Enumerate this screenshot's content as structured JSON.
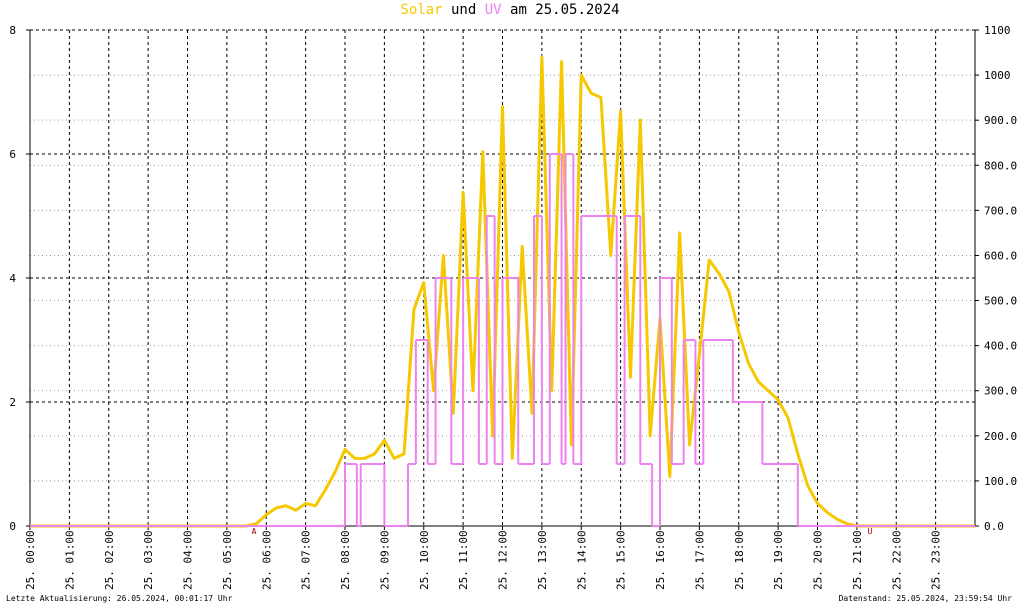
{
  "chart_data": {
    "type": "line",
    "title_middle": "und",
    "title_suffix": "am 25.05.2024",
    "xlim": [
      0,
      24
    ],
    "xticks": [
      {
        "value": 0,
        "label": "25. 00:00"
      },
      {
        "value": 1,
        "label": "25. 01:00"
      },
      {
        "value": 2,
        "label": "25. 02:00"
      },
      {
        "value": 3,
        "label": "25. 03:00"
      },
      {
        "value": 4,
        "label": "25. 04:00"
      },
      {
        "value": 5,
        "label": "25. 05:00"
      },
      {
        "value": 6,
        "label": "25. 06:00"
      },
      {
        "value": 7,
        "label": "25. 07:00"
      },
      {
        "value": 8,
        "label": "25. 08:00"
      },
      {
        "value": 9,
        "label": "25. 09:00"
      },
      {
        "value": 10,
        "label": "25. 10:00"
      },
      {
        "value": 11,
        "label": "25. 11:00"
      },
      {
        "value": 12,
        "label": "25. 12:00"
      },
      {
        "value": 13,
        "label": "25. 13:00"
      },
      {
        "value": 14,
        "label": "25. 14:00"
      },
      {
        "value": 15,
        "label": "25. 15:00"
      },
      {
        "value": 16,
        "label": "25. 16:00"
      },
      {
        "value": 17,
        "label": "25. 17:00"
      },
      {
        "value": 18,
        "label": "25. 18:00"
      },
      {
        "value": 19,
        "label": "25. 19:00"
      },
      {
        "value": 20,
        "label": "25. 20:00"
      },
      {
        "value": 21,
        "label": "25. 21:00"
      },
      {
        "value": 22,
        "label": "25. 22:00"
      },
      {
        "value": 23,
        "label": "25. 23:00"
      }
    ],
    "ylim": [
      0,
      8
    ],
    "yticks": [
      0,
      2,
      4,
      6,
      8
    ],
    "y2lim": [
      0,
      1100
    ],
    "y2ticks": [
      {
        "value": 0,
        "label": "0.0"
      },
      {
        "value": 100,
        "label": "100.0"
      },
      {
        "value": 200,
        "label": "200.0"
      },
      {
        "value": 300,
        "label": "300.0"
      },
      {
        "value": 400,
        "label": "400.0"
      },
      {
        "value": 500,
        "label": "500.0"
      },
      {
        "value": 600,
        "label": "600.0"
      },
      {
        "value": 700,
        "label": "700.0"
      },
      {
        "value": 800,
        "label": "800.0"
      },
      {
        "value": 900,
        "label": "900.0"
      },
      {
        "value": 1000,
        "label": "1000"
      },
      {
        "value": 1100,
        "label": "1100"
      }
    ],
    "grid": true,
    "series": [
      {
        "name": "Solar",
        "color": "#f5c800",
        "axis": "y2",
        "x": [
          0,
          5.5,
          5.75,
          6,
          6.25,
          6.5,
          6.75,
          7,
          7.25,
          7.5,
          7.75,
          8,
          8.25,
          8.5,
          8.75,
          9,
          9.25,
          9.5,
          9.75,
          10,
          10.25,
          10.5,
          10.75,
          11,
          11.25,
          11.5,
          11.75,
          12,
          12.25,
          12.5,
          12.75,
          13,
          13.25,
          13.5,
          13.75,
          14,
          14.25,
          14.5,
          14.75,
          15,
          15.25,
          15.5,
          15.75,
          16,
          16.25,
          16.5,
          16.75,
          17,
          17.25,
          17.5,
          17.75,
          18,
          18.25,
          18.5,
          18.75,
          19,
          19.25,
          19.5,
          19.75,
          20,
          20.25,
          20.5,
          20.75,
          21,
          24
        ],
        "values": [
          0,
          0,
          5,
          25,
          40,
          45,
          35,
          50,
          45,
          80,
          120,
          170,
          150,
          150,
          160,
          190,
          150,
          160,
          480,
          540,
          300,
          600,
          250,
          740,
          300,
          830,
          200,
          930,
          150,
          620,
          250,
          1040,
          300,
          1030,
          180,
          1000,
          960,
          950,
          600,
          920,
          330,
          900,
          200,
          460,
          110,
          650,
          180,
          380,
          590,
          560,
          520,
          430,
          360,
          320,
          300,
          280,
          240,
          160,
          90,
          50,
          30,
          15,
          5,
          0,
          0
        ]
      },
      {
        "name": "UV",
        "color": "#ee82ee",
        "axis": "y",
        "x": [
          0,
          8,
          8.3,
          8.4,
          9,
          9.6,
          9.8,
          10.1,
          10.3,
          10.7,
          11,
          11.4,
          11.6,
          11.8,
          12,
          12.4,
          12.8,
          13,
          13.2,
          13.5,
          13.6,
          13.8,
          14,
          14.9,
          15.1,
          15.5,
          15.8,
          16,
          16.3,
          16.6,
          16.9,
          17.1,
          17.85,
          18.6,
          19.5
        ],
        "values": [
          0,
          1,
          0,
          1,
          0,
          1,
          3,
          1,
          4,
          1,
          4,
          1,
          5,
          1,
          4,
          1,
          5,
          1,
          6,
          1,
          6,
          1,
          5,
          1,
          5,
          1,
          0,
          4,
          1,
          3,
          1,
          3,
          2,
          1,
          0
        ]
      }
    ],
    "annotations": [
      {
        "text": "A",
        "x": 5.69
      },
      {
        "text": "U",
        "x": 21.33
      }
    ],
    "footer_left": "Letzte Aktualisierung: 26.05.2024, 00:01:17 Uhr",
    "footer_right": "Datenstand: 25.05.2024, 23:59:54 Uhr"
  }
}
